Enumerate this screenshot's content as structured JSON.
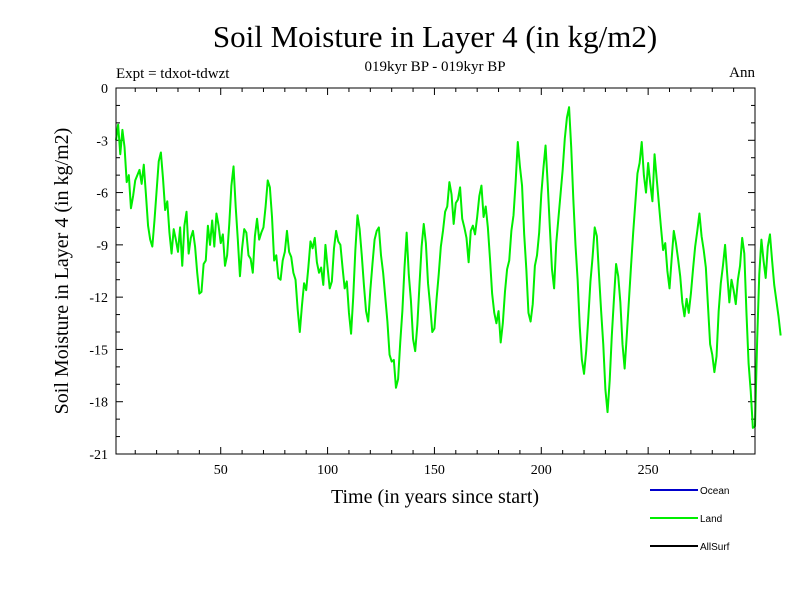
{
  "chart_data": {
    "type": "line",
    "title": "Soil Moisture in Layer 4 (in kg/m2)",
    "subtitle": "019kyr BP - 019kyr BP",
    "left_label": "Expt = tdxot-tdwzt",
    "right_label": "Ann",
    "xlabel": "Time (in years since start)",
    "ylabel": "Soil Moisture in Layer 4 (in kg/m2)",
    "xlim": [
      1,
      300
    ],
    "ylim": [
      -21,
      0
    ],
    "xticks": [
      50,
      100,
      150,
      200,
      250
    ],
    "yticks": [
      0,
      -3,
      -6,
      -9,
      -12,
      -15,
      -18,
      -21
    ],
    "grid": false,
    "legend_position": "bottom-right",
    "legend": [
      {
        "name": "Ocean",
        "color": "#0000cc"
      },
      {
        "name": "Land",
        "color": "#00ee00"
      },
      {
        "name": "AllSurf",
        "color": "#000000"
      }
    ],
    "series": [
      {
        "name": "Land",
        "color": "#00ee00",
        "x_start": 1,
        "x_step": 1,
        "values": [
          -3.0,
          -2.1,
          -3.8,
          -2.4,
          -3.4,
          -5.4,
          -5.0,
          -6.9,
          -6.2,
          -5.3,
          -5.0,
          -4.7,
          -5.5,
          -4.4,
          -6.1,
          -7.9,
          -8.7,
          -9.1,
          -7.6,
          -5.9,
          -4.2,
          -3.7,
          -5.2,
          -7.0,
          -6.5,
          -8.3,
          -9.5,
          -8.1,
          -8.7,
          -9.4,
          -8.0,
          -10.2,
          -7.9,
          -7.1,
          -9.5,
          -8.6,
          -8.2,
          -9.1,
          -10.6,
          -11.8,
          -11.7,
          -10.1,
          -9.9,
          -7.9,
          -9.0,
          -7.6,
          -9.1,
          -7.2,
          -7.9,
          -8.9,
          -8.4,
          -10.2,
          -9.6,
          -7.8,
          -5.6,
          -4.5,
          -6.8,
          -8.7,
          -10.8,
          -9.2,
          -8.1,
          -8.3,
          -9.6,
          -9.8,
          -10.6,
          -8.5,
          -7.5,
          -8.7,
          -8.3,
          -8.0,
          -6.8,
          -5.3,
          -5.7,
          -7.4,
          -9.9,
          -9.6,
          -10.9,
          -11.0,
          -9.9,
          -9.4,
          -8.2,
          -9.4,
          -9.7,
          -10.6,
          -11.0,
          -12.7,
          -14.0,
          -12.5,
          -11.2,
          -11.6,
          -10.3,
          -8.8,
          -9.2,
          -8.6,
          -10.0,
          -10.6,
          -10.3,
          -11.3,
          -9.0,
          -10.3,
          -11.5,
          -11.1,
          -9.2,
          -8.2,
          -8.8,
          -9.0,
          -10.3,
          -11.5,
          -11.1,
          -12.9,
          -14.1,
          -12.0,
          -9.3,
          -7.3,
          -8.1,
          -9.6,
          -11.3,
          -12.8,
          -13.4,
          -11.6,
          -10.1,
          -8.7,
          -8.2,
          -8.0,
          -9.6,
          -10.6,
          -12.0,
          -13.4,
          -15.3,
          -15.7,
          -15.6,
          -17.2,
          -16.7,
          -14.6,
          -12.8,
          -10.3,
          -8.3,
          -10.7,
          -12.2,
          -14.4,
          -15.1,
          -13.6,
          -11.3,
          -9.1,
          -7.8,
          -8.9,
          -11.2,
          -12.5,
          -14.0,
          -13.8,
          -12.1,
          -10.7,
          -9.1,
          -8.2,
          -7.1,
          -6.8,
          -5.4,
          -6.1,
          -7.8,
          -6.6,
          -6.4,
          -5.7,
          -7.5,
          -8.0,
          -8.6,
          -10.0,
          -8.2,
          -7.9,
          -8.4,
          -7.4,
          -6.2,
          -5.6,
          -7.4,
          -6.8,
          -8.0,
          -9.8,
          -11.8,
          -12.9,
          -13.5,
          -12.8,
          -14.6,
          -13.5,
          -11.7,
          -10.4,
          -9.9,
          -8.2,
          -7.3,
          -5.4,
          -3.1,
          -4.5,
          -5.6,
          -8.4,
          -10.4,
          -12.9,
          -13.4,
          -12.4,
          -10.2,
          -9.6,
          -8.3,
          -6.1,
          -4.6,
          -3.3,
          -5.5,
          -8.0,
          -10.4,
          -11.5,
          -8.9,
          -7.5,
          -6.1,
          -4.7,
          -2.9,
          -1.7,
          -1.1,
          -3.4,
          -6.4,
          -9.0,
          -11.0,
          -13.7,
          -15.6,
          -16.4,
          -15.1,
          -13.2,
          -11.1,
          -9.7,
          -8.0,
          -8.5,
          -10.7,
          -12.8,
          -14.7,
          -17.3,
          -18.6,
          -16.8,
          -14.2,
          -12.1,
          -10.1,
          -10.8,
          -12.3,
          -14.7,
          -16.1,
          -14.2,
          -12.2,
          -10.2,
          -8.3,
          -6.6,
          -4.9,
          -4.3,
          -3.1,
          -5.0,
          -6.0,
          -4.3,
          -5.5,
          -6.5,
          -3.8,
          -5.2,
          -6.6,
          -8.0,
          -9.3,
          -8.9,
          -10.5,
          -11.5,
          -9.8,
          -8.2,
          -8.9,
          -9.8,
          -10.8,
          -12.3,
          -13.1,
          -12.1,
          -12.9,
          -11.8,
          -10.4,
          -9.1,
          -8.2,
          -7.2,
          -8.5,
          -9.3,
          -10.3,
          -12.5,
          -14.7,
          -15.3,
          -16.3,
          -15.4,
          -12.8,
          -11.2,
          -10.2,
          -9.0,
          -10.7,
          -12.3,
          -11.0,
          -11.6,
          -12.4,
          -11.0,
          -10.2,
          -8.6,
          -9.5,
          -12.9,
          -15.8,
          -17.4,
          -19.5,
          -19.4,
          -14.5,
          -10.7,
          -8.7,
          -9.9,
          -10.9,
          -9.1,
          -8.4,
          -9.9,
          -11.3,
          -12.2,
          -13.1,
          -14.2
        ]
      }
    ]
  }
}
